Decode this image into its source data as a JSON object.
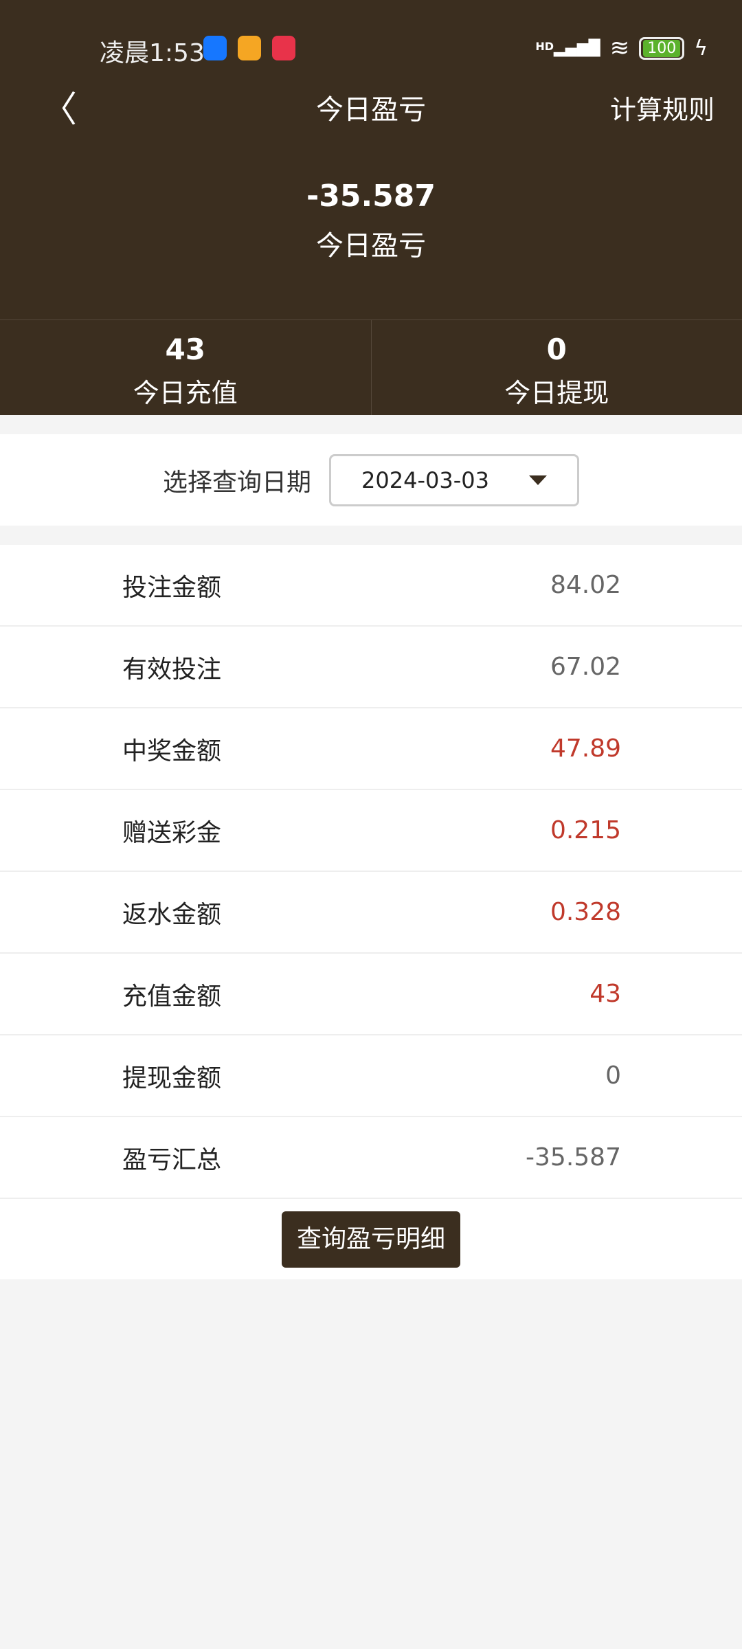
{
  "status_bar": {
    "time": "凌晨1:53",
    "network": "HD",
    "battery": "100"
  },
  "nav": {
    "title": "今日盈亏",
    "rules": "计算规则"
  },
  "summary": {
    "amount": "-35.587",
    "label": "今日盈亏"
  },
  "stats": [
    {
      "value": "43",
      "label": "今日充值"
    },
    {
      "value": "0",
      "label": "今日提现"
    }
  ],
  "date_filter": {
    "label": "选择查询日期",
    "value": "2024-03-03"
  },
  "rows": [
    {
      "label": "投注金额",
      "value": "84.02",
      "highlight": false
    },
    {
      "label": "有效投注",
      "value": "67.02",
      "highlight": false
    },
    {
      "label": "中奖金额",
      "value": "47.89",
      "highlight": true
    },
    {
      "label": "赠送彩金",
      "value": "0.215",
      "highlight": true
    },
    {
      "label": "返水金额",
      "value": "0.328",
      "highlight": true
    },
    {
      "label": "充值金额",
      "value": "43",
      "highlight": true
    },
    {
      "label": "提现金额",
      "value": "0",
      "highlight": false
    },
    {
      "label": "盈亏汇总",
      "value": "-35.587",
      "highlight": false
    }
  ],
  "detail_button": "查询盈亏明细",
  "colors": {
    "header": "#3b2e1f",
    "highlight": "#c0392b",
    "muted": "#666666"
  }
}
